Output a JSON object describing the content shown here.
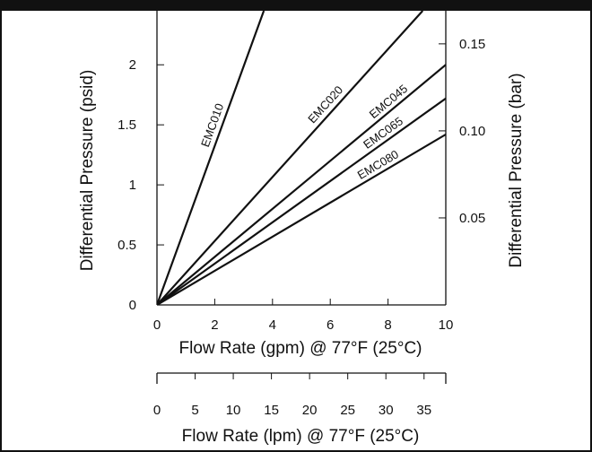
{
  "chart_data": {
    "type": "line",
    "x_axis": {
      "label": "Flow Rate (gpm) @ 77°F (25°C)",
      "ticks": [
        0,
        2,
        4,
        6,
        8,
        10
      ],
      "range": [
        0,
        10
      ]
    },
    "x2_axis": {
      "label": "Flow Rate (lpm) @ 77°F (25°C)",
      "ticks": [
        0,
        5,
        10,
        15,
        20,
        25,
        30,
        35
      ],
      "range": [
        0,
        37.85
      ]
    },
    "y_axis": {
      "label": "Differential Pressure (psid)",
      "ticks": [
        0,
        0.5,
        1,
        1.5,
        2
      ],
      "tick_labels": [
        "0",
        "0.5",
        "1",
        "1.5",
        "2"
      ],
      "range": [
        0,
        2.45
      ]
    },
    "y2_axis": {
      "label": "Differential Pressure (bar)",
      "ticks": [
        0.05,
        0.1,
        0.15
      ],
      "tick_labels": [
        "0.05",
        "0.10",
        "0.15"
      ],
      "range": [
        0,
        0.169
      ]
    },
    "series": [
      {
        "name": "EMC010",
        "x": [
          0,
          3.7
        ],
        "y": [
          0,
          2.45
        ]
      },
      {
        "name": "EMC020",
        "x": [
          0,
          9.2
        ],
        "y": [
          0,
          2.45
        ]
      },
      {
        "name": "EMC045",
        "x": [
          0,
          10
        ],
        "y": [
          0,
          2.0
        ]
      },
      {
        "name": "EMC065",
        "x": [
          0,
          10
        ],
        "y": [
          0,
          1.72
        ]
      },
      {
        "name": "EMC080",
        "x": [
          0,
          10
        ],
        "y": [
          0,
          1.42
        ]
      }
    ]
  }
}
